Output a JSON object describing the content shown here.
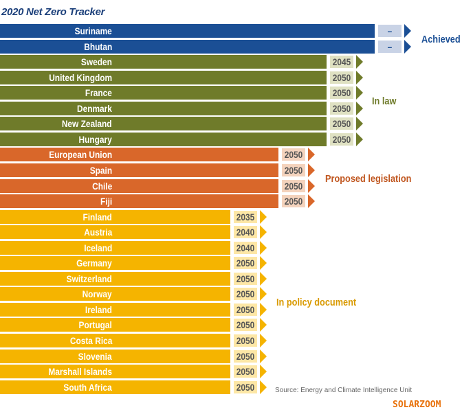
{
  "title": "2020 Net Zero Tracker",
  "colors": {
    "achieved": "#1b4f95",
    "in_law": "#6f7b2a",
    "proposed": "#d9672a",
    "policy": "#f5b400",
    "achieved_light": "#c9d3e6",
    "in_law_light": "#dfe1c2",
    "proposed_light": "#f4d3bd",
    "policy_light": "#fde7a6"
  },
  "groups": [
    {
      "key": "achieved",
      "label": "Achieved",
      "color": "#1b4f95"
    },
    {
      "key": "in_law",
      "label": "In law",
      "color": "#6f7b2a"
    },
    {
      "key": "proposed",
      "label": "Proposed legislation",
      "color": "#c0561f"
    },
    {
      "key": "policy",
      "label": "In policy document",
      "color": "#d99a00"
    }
  ],
  "chart_data": {
    "type": "bar",
    "title": "2020 Net Zero Tracker",
    "categories": [
      "Suriname",
      "Bhutan",
      "Sweden",
      "United Kingdom",
      "France",
      "Denmark",
      "New Zealand",
      "Hungary",
      "European Union",
      "Spain",
      "Chile",
      "Fiji",
      "Finland",
      "Austria",
      "Iceland",
      "Germany",
      "Switzerland",
      "Norway",
      "Ireland",
      "Portugal",
      "Costa Rica",
      "Slovenia",
      "Marshall Islands",
      "South Africa"
    ],
    "values": [
      "–",
      "–",
      "2045",
      "2050",
      "2050",
      "2050",
      "2050",
      "2050",
      "2050",
      "2050",
      "2050",
      "2050",
      "2035",
      "2040",
      "2040",
      "2050",
      "2050",
      "2050",
      "2050",
      "2050",
      "2050",
      "2050",
      "2050",
      "2050"
    ],
    "status": [
      "achieved",
      "achieved",
      "in_law",
      "in_law",
      "in_law",
      "in_law",
      "in_law",
      "in_law",
      "proposed",
      "proposed",
      "proposed",
      "proposed",
      "policy",
      "policy",
      "policy",
      "policy",
      "policy",
      "policy",
      "policy",
      "policy",
      "policy",
      "policy",
      "policy",
      "policy"
    ]
  },
  "source": "Source: Energy and Climate Intelligence Unit",
  "watermark": "SOLARZOOM"
}
